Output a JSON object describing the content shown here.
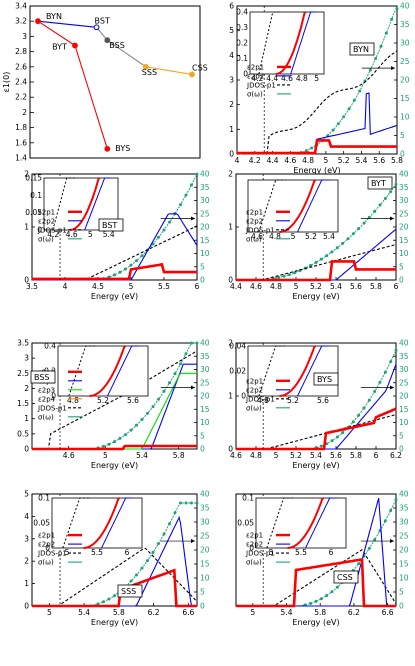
{
  "colors": {
    "eps1": "#ff0000",
    "eps2": "#0000ff",
    "jdos": "#000000",
    "sigma": "#1aa37a",
    "sss_line": "#f5a623",
    "bss_p3": "#00dd00",
    "bss_p4": "#ff8c00",
    "bst_dash": "#f5a623",
    "panel_a_line": "#ff0000"
  },
  "chart_data": [
    {
      "id": "a",
      "type": "line",
      "ylabel": "ε1(0)",
      "ylim": [
        1.4,
        3.4
      ],
      "yticks": [
        "1.4",
        "1.6",
        "1.8",
        "2",
        "2.2",
        "2.4",
        "2.6",
        "2.8",
        "3",
        "3.2",
        "3.4"
      ],
      "points": [
        {
          "label": "BYN",
          "x": 0,
          "y": 3.2
        },
        {
          "label": "BST",
          "x": 0.38,
          "y": 3.12
        },
        {
          "label": "BYT",
          "x": 0.24,
          "y": 2.88
        },
        {
          "label": "BSS",
          "x": 0.45,
          "y": 2.95
        },
        {
          "label": "BYS",
          "x": 0.45,
          "y": 1.52
        },
        {
          "label": "SSS",
          "x": 0.7,
          "y": 2.6
        },
        {
          "label": "CSS",
          "x": 1.0,
          "y": 2.5
        }
      ]
    },
    {
      "id": "BYN",
      "tag": "BYN",
      "xlim": [
        4,
        5.8
      ],
      "xticks": [
        "4",
        "4.2",
        "4.4",
        "4.6",
        "4.8",
        "5",
        "5.2",
        "5.4",
        "5.6",
        "5.8"
      ],
      "ylim": [
        0,
        6
      ],
      "yticks": [
        "0",
        "1",
        "2",
        "3",
        "4",
        "5",
        "6"
      ],
      "y2ticks": [
        "0",
        "5",
        "10",
        "15",
        "20",
        "25",
        "30",
        "35",
        "40"
      ],
      "xlabel": "Energy (eV)",
      "legend": [
        "ε2p1",
        "ε2p2",
        "JDOS-p1",
        "σ(ω)"
      ],
      "inset": {
        "xticks": [
          "4.2",
          "4.4",
          "4.6",
          "4.8",
          "5"
        ],
        "yticks": [
          "0",
          "0.1",
          "0.2",
          "0.3",
          "0.4"
        ]
      }
    },
    {
      "id": "BST",
      "tag": "BST",
      "xlim": [
        3.5,
        6
      ],
      "xticks": [
        "3.5",
        "4",
        "4.5",
        "5",
        "5.5",
        "6"
      ],
      "ylim": [
        0,
        2
      ],
      "yticks": [
        "0",
        "1",
        "2"
      ],
      "y2ticks": [
        "0",
        "5",
        "10",
        "15",
        "20",
        "25",
        "30",
        "35",
        "40"
      ],
      "xlabel": "Energy (eV)",
      "legend": [
        "ε2p1",
        "ε2p2",
        "JDOS-p1",
        "σ(ω)"
      ],
      "inset": {
        "xticks": [
          "4.2",
          "4.6",
          "5",
          "5.4"
        ],
        "yticks": [
          "0",
          "0.05",
          "0.1",
          "0.15"
        ]
      }
    },
    {
      "id": "BYT",
      "tag": "BYT",
      "xlim": [
        4.4,
        6
      ],
      "xticks": [
        "4.4",
        "4.6",
        "4.8",
        "5",
        "5.2",
        "5.4",
        "5.6",
        "5.8",
        "6"
      ],
      "ylim": [
        0,
        2
      ],
      "yticks": [
        "0",
        "1",
        "2"
      ],
      "y2ticks": [
        "0",
        "5",
        "10",
        "15",
        "20",
        "25",
        "30",
        "35",
        "40"
      ],
      "xlabel": "Energy (eV)",
      "legend": [
        "ε2p1",
        "ε2p2",
        "JDOS-p1",
        "σ(ω)"
      ],
      "inset": {
        "xticks": [
          "4.6",
          "4.8",
          "5",
          "5.2",
          "5.4"
        ],
        "yticks": []
      }
    },
    {
      "id": "BSS",
      "tag": "BSS",
      "xlim": [
        4.2,
        6
      ],
      "xticks": [
        "4.6",
        "5",
        "5.4",
        "5.8"
      ],
      "ylim": [
        0,
        3.5
      ],
      "yticks": [
        "0",
        "0.5",
        "1",
        "1.5",
        "2",
        "2.5",
        "3",
        "3.5"
      ],
      "y2ticks": [
        "0",
        "5",
        "10",
        "15",
        "20",
        "25",
        "30",
        "35",
        "40"
      ],
      "xlabel": "Energy (eV)",
      "legend": [
        "ε2p1",
        "ε2p2",
        "ε2p3",
        "ε2p4",
        "JDOS-p1",
        "σ(ω)"
      ],
      "inset": {
        "xticks": [
          "4.8",
          "5.2",
          "5.6"
        ],
        "yticks": [
          "0",
          "0.2",
          "0.4"
        ]
      }
    },
    {
      "id": "BYS",
      "tag": "BYS",
      "xlim": [
        4.6,
        6.2
      ],
      "xticks": [
        "4.6",
        "4.8",
        "5",
        "5.2",
        "5.4",
        "5.6",
        "5.8",
        "6",
        "6.2"
      ],
      "ylim": [
        0,
        2
      ],
      "yticks": [
        "0",
        "1",
        "2"
      ],
      "y2ticks": [
        "0",
        "5",
        "10",
        "15",
        "20",
        "25",
        "30",
        "35",
        "40"
      ],
      "xlabel": "Energy (eV)",
      "legend": [
        "ε2p1",
        "ε2p2",
        "JDOS-p1",
        "σ(ω)"
      ],
      "inset": {
        "xticks": [
          "4.8",
          "5.2",
          "5.6"
        ],
        "yticks": [
          "0",
          "0.02",
          "0.04"
        ]
      }
    },
    {
      "id": "SSS",
      "tag": "SSS",
      "xlim": [
        4.8,
        6.7
      ],
      "xticks": [
        "5",
        "5.4",
        "5.8",
        "6.2",
        "6.6"
      ],
      "ylim": [
        0,
        5
      ],
      "yticks": [
        "0",
        "1",
        "2",
        "3",
        "4",
        "5"
      ],
      "y2ticks": [
        "0",
        "5",
        "10",
        "15",
        "20",
        "25",
        "30",
        "35",
        "40"
      ],
      "xlabel": "Energy (eV)",
      "legend": [
        "ε2p1",
        "ε2p2",
        "JDOS-p1",
        "σ(ω)"
      ],
      "inset": {
        "xticks": [
          "5",
          "5.5",
          "6"
        ],
        "yticks": [
          "0",
          "0.05",
          "0.1"
        ]
      }
    },
    {
      "id": "CSS",
      "tag": "CSS",
      "xlim": [
        4.8,
        6.7
      ],
      "xticks": [
        "5",
        "5.4",
        "5.8",
        "6.2",
        "6.6"
      ],
      "ylim": [
        0,
        5
      ],
      "yticks": [],
      "y2ticks": [
        "0",
        "5",
        "10",
        "15",
        "20",
        "25",
        "30",
        "35",
        "40"
      ],
      "xlabel": "Energy (eV)",
      "legend": [
        "ε2p1",
        "ε2p2",
        "JDOS-p1",
        "σ(ω)"
      ],
      "inset": {
        "xticks": [
          "5",
          "5.5",
          "6"
        ],
        "yticks": [
          "0",
          "0.05",
          "0.1"
        ]
      }
    }
  ]
}
